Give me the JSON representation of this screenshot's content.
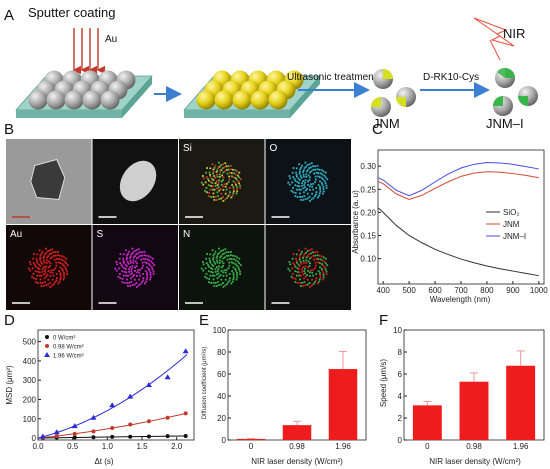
{
  "panels": {
    "a": "A",
    "b": "B",
    "c": "C",
    "d": "D",
    "e": "E",
    "f": "F"
  },
  "schematic": {
    "sputter": "Sputter coating",
    "au": "Au",
    "ultrasonic": "Ultrasonic treatment",
    "reagent": "D-RK10-Cys",
    "nir": "NIR",
    "jnm": "JNM",
    "jnmi": "JNM–I"
  },
  "em_labels": [
    "",
    "",
    "Si",
    "O",
    "Au",
    "S",
    "N",
    ""
  ],
  "colors": {
    "au_yellow": "#e6d21c",
    "sphere_gray": "#a9a9a9",
    "green": "#39b54a",
    "bar_red": "#ee1c1c",
    "arrow_blue": "#3b7fd0",
    "substrate": "#9fd3c8"
  },
  "chart_data": [
    {
      "id": "C",
      "type": "line",
      "xlabel": "Wavelength (nm)",
      "ylabel": "Absorbance (a. u)",
      "xlim": [
        380,
        1020
      ],
      "ylim": [
        0.045,
        0.335
      ],
      "xticks": [
        400,
        500,
        600,
        700,
        800,
        900,
        1000
      ],
      "yticks": [
        0.1,
        0.15,
        0.2,
        0.25,
        0.3
      ],
      "ytick_labels": [
        "0.10",
        "0.15",
        "0.20",
        "0.25",
        "0.30"
      ],
      "legend": "right",
      "series": [
        {
          "name": "SiO₂",
          "color": "#333333",
          "x": [
            380,
            400,
            450,
            500,
            550,
            600,
            650,
            700,
            750,
            800,
            850,
            900,
            950,
            1000
          ],
          "y": [
            0.21,
            0.2,
            0.172,
            0.15,
            0.134,
            0.12,
            0.109,
            0.099,
            0.091,
            0.084,
            0.078,
            0.073,
            0.068,
            0.063
          ]
        },
        {
          "name": "JNM",
          "color": "#d64a3a",
          "x": [
            380,
            400,
            450,
            500,
            550,
            600,
            650,
            700,
            750,
            800,
            850,
            900,
            950,
            1000
          ],
          "y": [
            0.267,
            0.262,
            0.24,
            0.228,
            0.237,
            0.252,
            0.266,
            0.278,
            0.285,
            0.288,
            0.287,
            0.284,
            0.28,
            0.275
          ]
        },
        {
          "name": "JNM–I",
          "color": "#4a4ae0",
          "x": [
            380,
            400,
            450,
            500,
            550,
            600,
            650,
            700,
            750,
            800,
            850,
            900,
            950,
            1000
          ],
          "y": [
            0.275,
            0.27,
            0.248,
            0.236,
            0.248,
            0.266,
            0.283,
            0.296,
            0.304,
            0.308,
            0.307,
            0.304,
            0.299,
            0.294
          ]
        }
      ]
    },
    {
      "id": "D",
      "type": "scatter",
      "xlabel": "Δt (s)",
      "ylabel": "MSD (μm²)",
      "xlim": [
        0,
        2.25
      ],
      "ylim": [
        -10,
        560
      ],
      "xticks": [
        0.0,
        0.5,
        1.0,
        1.5,
        2.0
      ],
      "xtick_labels": [
        "0.0",
        "0.5",
        "1.0",
        "1.5",
        "2.0"
      ],
      "yticks": [
        0,
        100,
        200,
        300,
        400,
        500
      ],
      "legend": "top-left",
      "series": [
        {
          "name": "0 W/cm²",
          "color": "#111111",
          "marker": "circle",
          "x": [
            0.07,
            0.27,
            0.53,
            0.8,
            1.07,
            1.33,
            1.6,
            1.87,
            2.13
          ],
          "y": [
            1,
            2,
            3,
            4,
            6,
            7,
            8,
            10,
            11
          ]
        },
        {
          "name": "0.98 W/cm²",
          "color": "#c0392b",
          "marker": "circle",
          "x": [
            0.07,
            0.27,
            0.53,
            0.8,
            1.07,
            1.33,
            1.6,
            1.87,
            2.13
          ],
          "y": [
            3,
            10,
            22,
            35,
            52,
            70,
            87,
            105,
            128
          ]
        },
        {
          "name": "1.96 W/cm²",
          "color": "#2a2ad8",
          "marker": "triangle",
          "x": [
            0.07,
            0.27,
            0.53,
            0.8,
            1.07,
            1.33,
            1.6,
            1.87,
            2.13
          ],
          "y": [
            8,
            30,
            62,
            105,
            170,
            215,
            275,
            315,
            450
          ]
        }
      ]
    },
    {
      "id": "E",
      "type": "bar",
      "categories": [
        "0",
        "0.98",
        "1.96"
      ],
      "values": [
        1,
        13.5,
        64.5
      ],
      "errors": [
        0.5,
        3.5,
        16
      ],
      "xlabel": "NIR laser density (W/cm²)",
      "ylabel": "Diffusion coefficient (μm²/s)",
      "ylim": [
        0,
        100
      ],
      "yticks": [
        0,
        20,
        40,
        60,
        80,
        100
      ],
      "color": "#ee1c1c"
    },
    {
      "id": "F",
      "type": "bar",
      "categories": [
        "0",
        "0.98",
        "1.96"
      ],
      "values": [
        3.15,
        5.3,
        6.75
      ],
      "errors": [
        0.35,
        0.8,
        1.35
      ],
      "xlabel": "NIR laser density (W/cm²)",
      "ylabel": "Speed (μm/s)",
      "ylim": [
        0,
        10
      ],
      "yticks": [
        0,
        2,
        4,
        6,
        8,
        10
      ],
      "color": "#ee1c1c"
    }
  ]
}
